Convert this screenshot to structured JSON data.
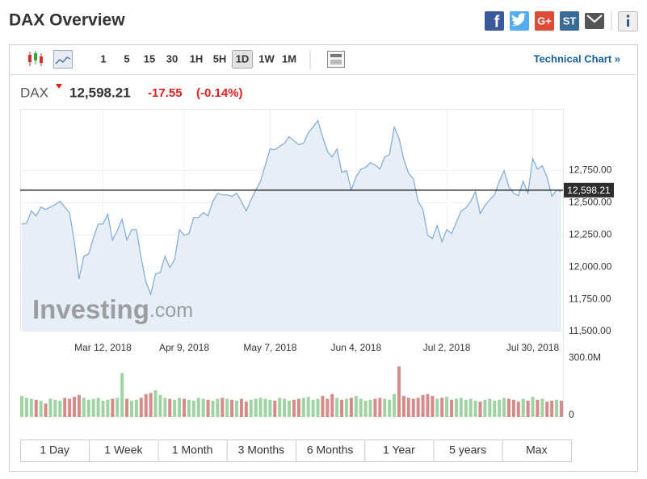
{
  "header": {
    "title": "DAX Overview",
    "social": [
      "f",
      "G+",
      "ST"
    ]
  },
  "toolbar": {
    "intervals": [
      "1",
      "5",
      "15",
      "30",
      "1H",
      "5H",
      "1D",
      "1W",
      "1M"
    ],
    "active_interval_index": 6,
    "technical_link": "Technical Chart »"
  },
  "quote": {
    "symbol": "DAX",
    "last": "12,598.21",
    "change": "-17.55",
    "change_percent": "(-0.14%)"
  },
  "chart_data": [
    {
      "type": "area",
      "color": "#7ea9d6",
      "fill": "#e7eef5",
      "values": [
        12335,
        12341,
        12436,
        12398,
        12467,
        12448,
        12467,
        12486,
        12511,
        12467,
        12423,
        12197,
        11908,
        12084,
        12103,
        12228,
        12335,
        12335,
        12411,
        12210,
        12285,
        12373,
        12210,
        12291,
        12291,
        12071,
        11883,
        11789,
        11946,
        11958,
        12084,
        11996,
        12059,
        12291,
        12247,
        12260,
        12385,
        12385,
        12423,
        12398,
        12511,
        12574,
        12561,
        12561,
        12549,
        12574,
        12511,
        12436,
        12524,
        12599,
        12668,
        12794,
        12919,
        12913,
        12938,
        12963,
        13013,
        12982,
        12951,
        12963,
        13045,
        13089,
        13139,
        13013,
        12900,
        12856,
        12919,
        12737,
        12750,
        12599,
        12700,
        12762,
        12775,
        12812,
        12794,
        12762,
        12856,
        12875,
        13089,
        13001,
        12838,
        12731,
        12687,
        12511,
        12448,
        12247,
        12222,
        12323,
        12197,
        12291,
        12260,
        12348,
        12436,
        12461,
        12511,
        12586,
        12417,
        12480,
        12524,
        12561,
        12668,
        12750,
        12624,
        12574,
        12555,
        12668,
        12574,
        12844,
        12762,
        12787,
        12700,
        12549,
        12599,
        12586
      ],
      "xlim": [
        0,
        113
      ],
      "xticks": [
        {
          "value": 17,
          "label": "Mar 12, 2018"
        },
        {
          "value": 34,
          "label": "Apr 9, 2018"
        },
        {
          "value": 52,
          "label": "May 7, 2018"
        },
        {
          "value": 70,
          "label": "Jun 4, 2018"
        },
        {
          "value": 89,
          "label": "Jul 2, 2018"
        },
        {
          "value": 107,
          "label": "Jul 30, 2018"
        }
      ],
      "ylim": [
        11500,
        13230
      ],
      "yticks": [
        {
          "value": 11500,
          "label": "11,500.00"
        },
        {
          "value": 11750,
          "label": "11,750.00"
        },
        {
          "value": 12000,
          "label": "12,000.00"
        },
        {
          "value": 12250,
          "label": "12,250.00"
        },
        {
          "value": 12500,
          "label": "12,500.00"
        },
        {
          "value": 12750,
          "label": "12,750.00"
        }
      ],
      "grid": true,
      "last": {
        "value": 12598.21,
        "label": "12,598.21"
      },
      "watermark": {
        "main": "Investing",
        "suffix": ".com"
      }
    },
    {
      "type": "bar",
      "up_color": "#9fd3a3",
      "down_color": "#d68a8a",
      "values": [
        110,
        100,
        95,
        90,
        85,
        70,
        95,
        90,
        85,
        100,
        95,
        105,
        115,
        100,
        90,
        95,
        100,
        85,
        90,
        95,
        100,
        230,
        95,
        85,
        90,
        100,
        120,
        125,
        140,
        115,
        100,
        95,
        90,
        100,
        95,
        90,
        85,
        100,
        95,
        90,
        85,
        95,
        100,
        95,
        90,
        85,
        95,
        80,
        90,
        95,
        100,
        95,
        90,
        85,
        100,
        95,
        85,
        90,
        95,
        100,
        105,
        90,
        95,
        110,
        95,
        120,
        100,
        90,
        95,
        100,
        110,
        95,
        85,
        90,
        95,
        100,
        95,
        90,
        120,
        265,
        110,
        100,
        95,
        100,
        115,
        120,
        110,
        95,
        100,
        105,
        90,
        95,
        100,
        90,
        95,
        85,
        80,
        90,
        95,
        85,
        90,
        100,
        95,
        90,
        80,
        95,
        85,
        105,
        90,
        95,
        80,
        85,
        90,
        85
      ],
      "ylim": [
        0,
        300
      ],
      "yticks": [
        0,
        {
          "value": 300,
          "label": "300.0M"
        }
      ]
    }
  ],
  "range_buttons": [
    "1 Day",
    "1 Week",
    "1 Month",
    "3 Months",
    "6 Months",
    "1 Year",
    "5 years",
    "Max"
  ]
}
